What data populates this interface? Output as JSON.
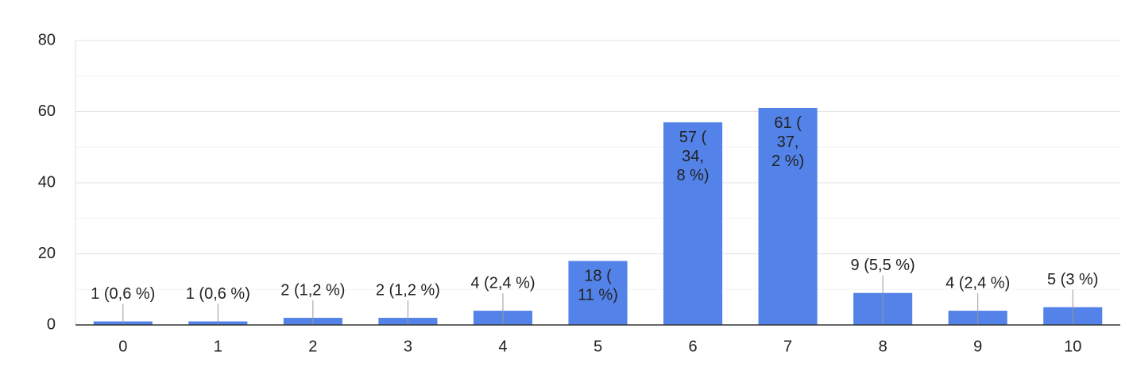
{
  "chart_data": {
    "type": "bar",
    "categories": [
      "0",
      "1",
      "2",
      "3",
      "4",
      "5",
      "6",
      "7",
      "8",
      "9",
      "10"
    ],
    "values": [
      1,
      1,
      2,
      2,
      4,
      18,
      57,
      61,
      9,
      4,
      5
    ],
    "value_labels": [
      "1 (0,6 %)",
      "1 (0,6 %)",
      "2 (1,2 %)",
      "2 (1,2 %)",
      "4 (2,4 %)",
      "18 (11 %)",
      "57 (34,8 %)",
      "61 (37,2 %)",
      "9 (5,5 %)",
      "4 (2,4 %)",
      "5 (3 %)"
    ],
    "color": "#5383e8",
    "ylim": [
      0,
      80
    ],
    "yticks": [
      0,
      20,
      40,
      60,
      80
    ],
    "minor_yticks": [
      10,
      30,
      50,
      70
    ],
    "grid": true
  }
}
